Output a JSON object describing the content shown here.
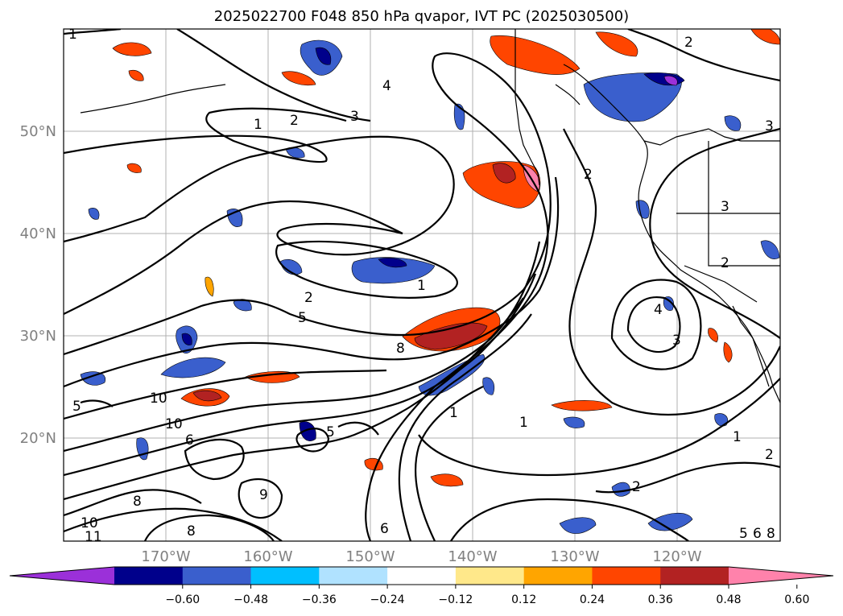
{
  "title": "2025022700 F048 850 hPa qvapor, IVT PC (2025030500)",
  "latitude_labels": [
    "50°N",
    "40°N",
    "30°N",
    "20°N"
  ],
  "longitude_labels": [
    "170°W",
    "160°W",
    "150°W",
    "140°W",
    "130°W",
    "120°W"
  ],
  "colorbar": {
    "tick_labels": [
      "−0.60",
      "−0.48",
      "−0.36",
      "−0.24",
      "−0.12",
      "0.12",
      "0.24",
      "0.36",
      "0.48",
      "0.60"
    ],
    "colors": [
      "#9b30d9",
      "#00008b",
      "#3a5fcd",
      "#00bfff",
      "#b0e2ff",
      "#ffffff",
      "#ffe88a",
      "#ffa500",
      "#ff4500",
      "#b22222",
      "#ff82ab"
    ]
  },
  "contour_labels": [
    "1",
    "2",
    "3",
    "4",
    "2",
    "1",
    "2",
    "3",
    "1",
    "2",
    "5",
    "8",
    "10",
    "10",
    "6",
    "5",
    "8",
    "9",
    "10",
    "11",
    "8",
    "6",
    "5",
    "1",
    "1",
    "2",
    "1",
    "2",
    "4",
    "3",
    "2",
    "3",
    "5",
    "6",
    "8"
  ]
}
